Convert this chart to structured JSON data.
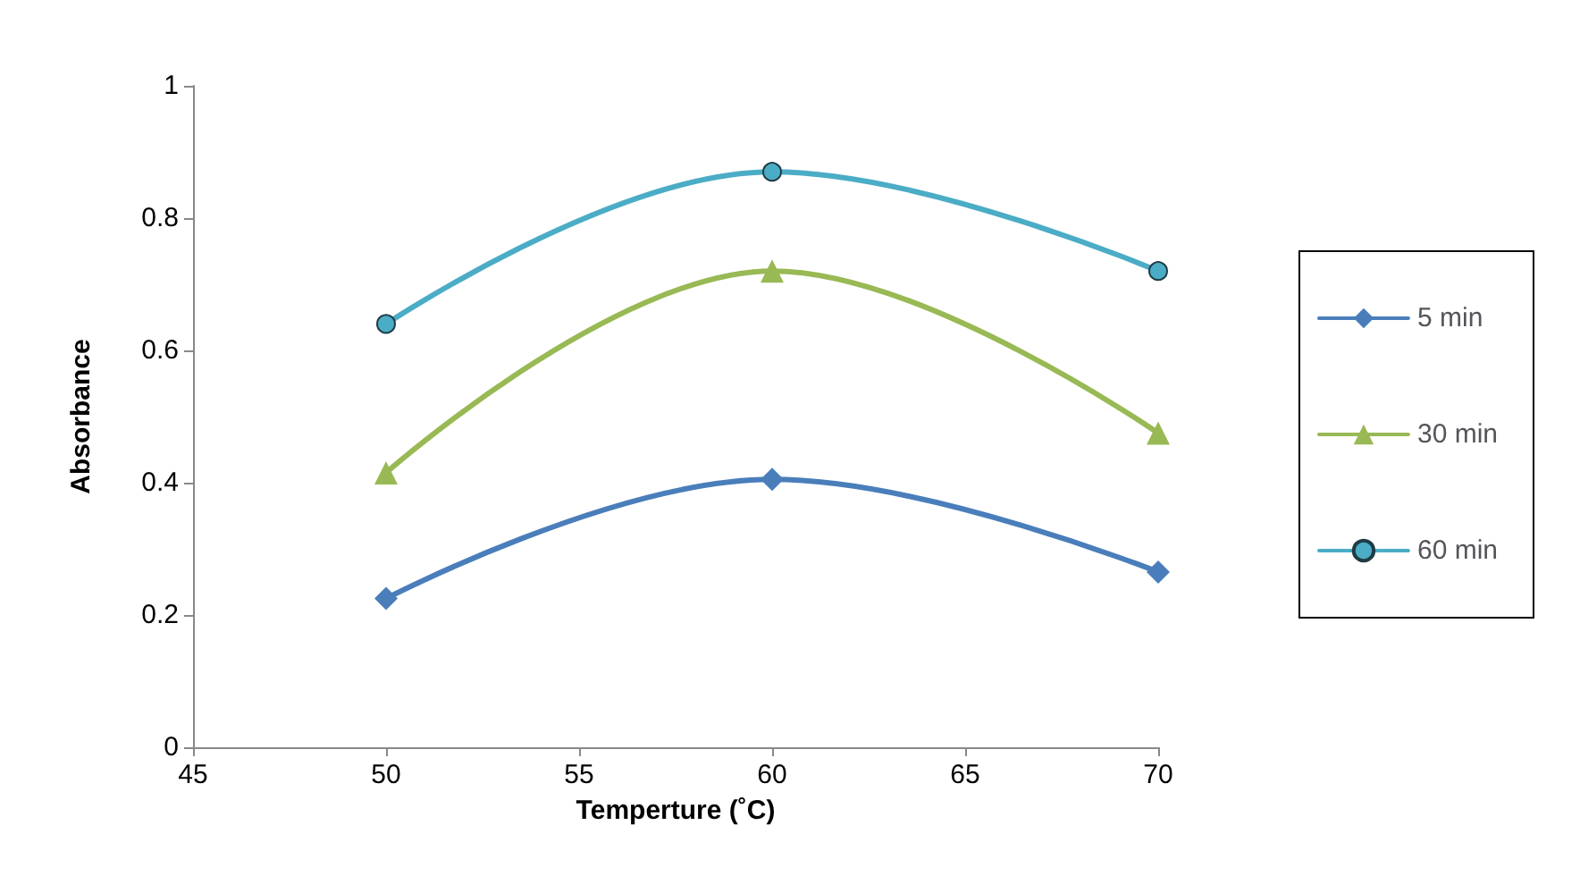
{
  "chart_data": {
    "type": "line",
    "xlabel": "Temperture (˚C)",
    "ylabel": "Absorbance",
    "x": [
      50,
      60,
      70
    ],
    "series": [
      {
        "name": "5 min",
        "color": "#4a7ebb",
        "marker": "diamond",
        "values": [
          0.225,
          0.405,
          0.265
        ]
      },
      {
        "name": "30 min",
        "color": "#98b954",
        "marker": "triangle",
        "values": [
          0.415,
          0.72,
          0.475
        ]
      },
      {
        "name": "60 min",
        "color": "#4bacc6",
        "marker": "circle",
        "values": [
          0.64,
          0.87,
          0.72
        ]
      }
    ],
    "xlim": [
      45,
      70
    ],
    "xticks": [
      45,
      50,
      55,
      60,
      65,
      70
    ],
    "ylim": [
      0,
      1
    ],
    "yticks": [
      0,
      0.2,
      0.4,
      0.6,
      0.8,
      1
    ],
    "grid": false,
    "legend": "right",
    "line_style": "solid"
  }
}
